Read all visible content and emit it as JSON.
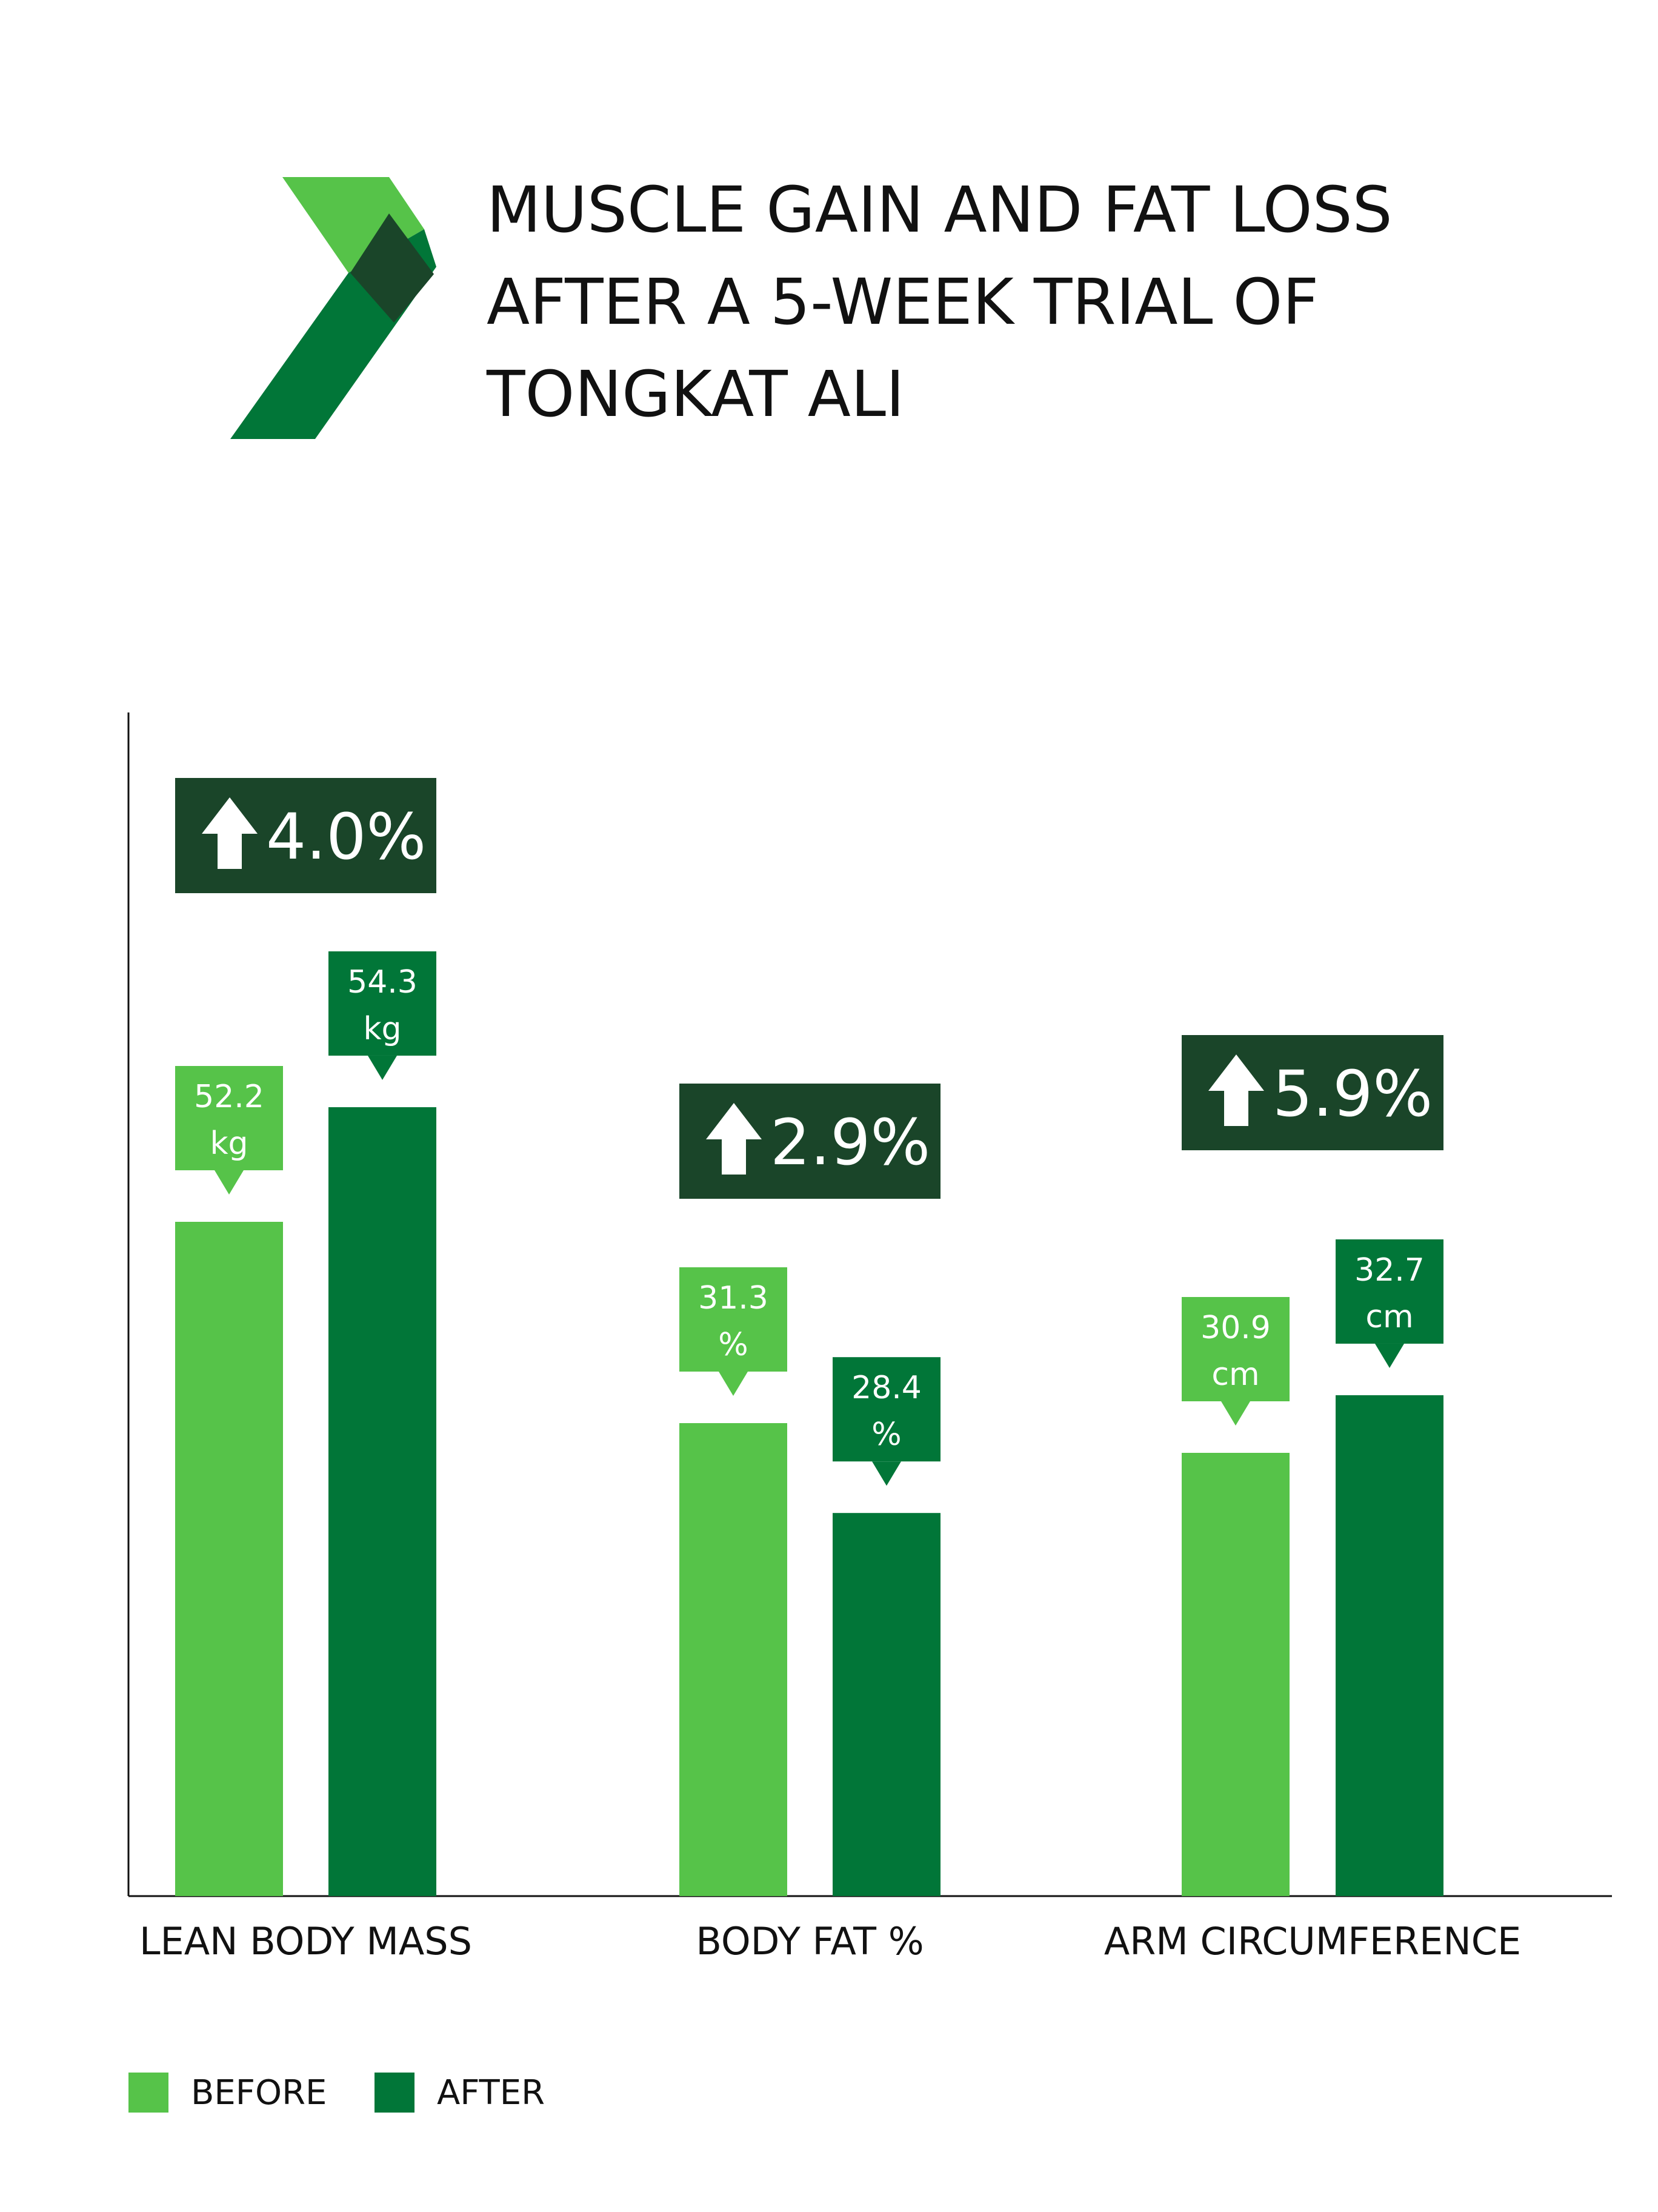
{
  "title_lines": [
    "MUSCLE GAIN AND FAT LOSS",
    "AFTER A 5-WEEK TRIAL OF",
    "TONGKAT ALI"
  ],
  "colors": {
    "before": "#56c349",
    "after": "#017638",
    "badge": "#1a4529",
    "axis": "#111111",
    "logo_light": "#56c349",
    "logo_dark": "#1a4529",
    "logo_mid": "#017638"
  },
  "legend": [
    {
      "label": "BEFORE",
      "series": "before"
    },
    {
      "label": "AFTER",
      "series": "after"
    }
  ],
  "chart_data": {
    "type": "bar",
    "categories": [
      "LEAN BODY MASS",
      "BODY FAT %",
      "ARM CIRCUMFERENCE"
    ],
    "series": [
      {
        "name": "BEFORE",
        "values": [
          52.2,
          31.3,
          30.9
        ],
        "units": [
          "kg",
          "%",
          "cm"
        ],
        "labels": [
          "52.2",
          "31.3",
          "30.9"
        ]
      },
      {
        "name": "AFTER",
        "values": [
          54.3,
          28.4,
          32.7
        ],
        "units": [
          "kg",
          "%",
          "cm"
        ],
        "labels": [
          "54.3",
          "28.4",
          "32.7"
        ]
      }
    ],
    "bar_heights_relative": [
      [
        1.0,
        1.17
      ],
      [
        1.0,
        0.81
      ],
      [
        1.0,
        1.13
      ]
    ],
    "change_badges": [
      "4.0%",
      "2.9%",
      "5.9%"
    ],
    "change_icon": "up-arrow-icon",
    "legend_placement": "bottom-left",
    "grid": false
  }
}
